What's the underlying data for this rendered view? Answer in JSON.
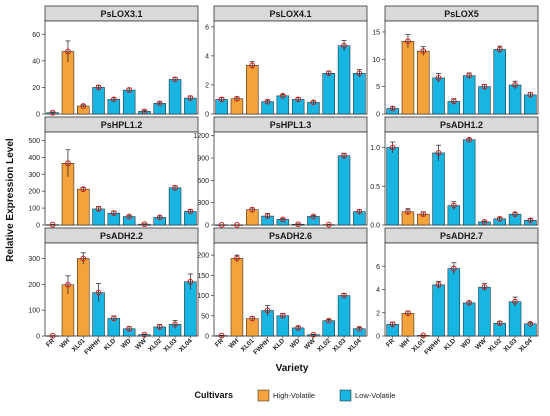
{
  "colors": {
    "high_volatile": "#f4a23c",
    "low_volatile": "#17b6e2",
    "strip": "#d9d9d9",
    "point": "#cc1f1f"
  },
  "chart_data": {
    "type": "bar",
    "ylabel": "Relative Expression Level",
    "xlabel": "Variety",
    "categories": [
      "FR",
      "WH",
      "XL01",
      "FWHH",
      "KLD",
      "WD",
      "WW",
      "XL02",
      "XL03",
      "XL04"
    ],
    "groups": [
      "low",
      "high",
      "high",
      "low",
      "low",
      "low",
      "low",
      "low",
      "low",
      "low"
    ],
    "legend": {
      "title": "Cultivars",
      "position": "bottom",
      "items": [
        {
          "key": "high",
          "label": "High-Volatile"
        },
        {
          "key": "low",
          "label": "Low-Volatile"
        }
      ]
    },
    "panels": [
      {
        "title": "PsLOX3.1",
        "ylim": [
          0,
          70
        ],
        "yticks": [
          0,
          20,
          40,
          60
        ],
        "values": [
          1,
          47,
          6,
          20,
          11,
          18,
          2,
          8,
          26,
          12
        ],
        "errors": [
          0.5,
          8,
          0.8,
          1.5,
          1.2,
          1.5,
          0.8,
          1,
          1.5,
          1.5
        ]
      },
      {
        "title": "PsLOX4.1",
        "ylim": [
          0,
          6.4
        ],
        "yticks": [
          0,
          2,
          4,
          6
        ],
        "values": [
          1.0,
          1.05,
          3.35,
          0.85,
          1.25,
          1.0,
          0.8,
          2.8,
          4.7,
          2.8
        ],
        "errors": [
          0.12,
          0.12,
          0.25,
          0.1,
          0.1,
          0.12,
          0.1,
          0.15,
          0.35,
          0.25
        ]
      },
      {
        "title": "PsLOX5",
        "ylim": [
          0,
          17
        ],
        "yticks": [
          0,
          5,
          10,
          15
        ],
        "values": [
          1.0,
          13.3,
          11.5,
          6.6,
          2.3,
          7.0,
          5.0,
          11.8,
          5.3,
          3.5
        ],
        "errors": [
          0.3,
          1.2,
          0.8,
          0.8,
          0.5,
          0.5,
          0.4,
          0.6,
          0.7,
          0.4
        ]
      },
      {
        "title": "PsHPL1.2",
        "ylim": [
          0,
          550
        ],
        "yticks": [
          0,
          100,
          200,
          300,
          400,
          500
        ],
        "values": [
          2,
          365,
          212,
          95,
          70,
          50,
          5,
          45,
          220,
          80
        ],
        "errors": [
          1,
          80,
          10,
          15,
          12,
          8,
          2,
          8,
          12,
          10
        ]
      },
      {
        "title": "PsHPL1.3",
        "ylim": [
          0,
          1250
        ],
        "yticks": [
          0,
          300,
          600,
          900,
          1200
        ],
        "values": [
          2,
          2,
          205,
          120,
          75,
          10,
          115,
          5,
          930,
          180
        ],
        "errors": [
          1,
          1,
          25,
          35,
          15,
          5,
          15,
          2,
          35,
          25
        ]
      },
      {
        "title": "PsADH1.2",
        "ylim": [
          0,
          1.2
        ],
        "yticks": [
          0,
          0.5,
          1.0
        ],
        "values": [
          1.0,
          0.17,
          0.14,
          0.93,
          0.25,
          1.1,
          0.04,
          0.08,
          0.14,
          0.06
        ],
        "errors": [
          0.07,
          0.04,
          0.03,
          0.1,
          0.05,
          0.02,
          0.01,
          0.02,
          0.02,
          0.02
        ]
      },
      {
        "title": "PsADH2.2",
        "ylim": [
          0,
          360
        ],
        "yticks": [
          0,
          100,
          200,
          300
        ],
        "values": [
          1,
          198,
          300,
          168,
          68,
          28,
          5,
          35,
          45,
          210
        ],
        "errors": [
          0.5,
          35,
          22,
          35,
          10,
          8,
          2,
          10,
          15,
          30
        ]
      },
      {
        "title": "PsADH2.6",
        "ylim": [
          0,
          230
        ],
        "yticks": [
          0,
          50,
          100,
          150,
          200
        ],
        "values": [
          1,
          192,
          43,
          63,
          50,
          20,
          3,
          38,
          100,
          18
        ],
        "errors": [
          0.5,
          8,
          5,
          12,
          6,
          4,
          1,
          3,
          5,
          3
        ]
      },
      {
        "title": "PsADH2.7",
        "ylim": [
          0,
          8
        ],
        "yticks": [
          0,
          2,
          4,
          6
        ],
        "values": [
          1.0,
          1.95,
          0.05,
          4.4,
          5.8,
          2.85,
          4.2,
          1.1,
          2.95,
          1.05
        ],
        "errors": [
          0.2,
          0.2,
          0.02,
          0.3,
          0.5,
          0.15,
          0.3,
          0.15,
          0.4,
          0.1
        ]
      }
    ]
  }
}
